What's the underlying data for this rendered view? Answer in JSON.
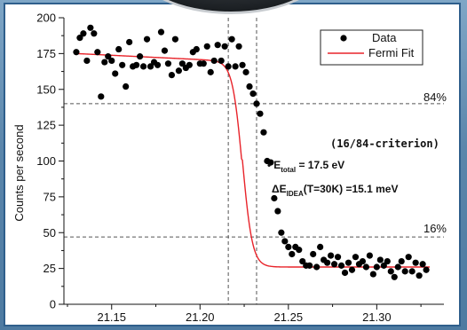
{
  "chart_data": {
    "type": "scatter",
    "xlabel": "",
    "ylabel": "Counts per second",
    "xlim": [
      21.123,
      21.338
    ],
    "ylim": [
      0,
      200
    ],
    "xticks": [
      "21.15",
      "21.20",
      "21.25",
      "21.30"
    ],
    "yticks": [
      "0",
      "25",
      "50",
      "75",
      "100",
      "125",
      "150",
      "175",
      "200"
    ],
    "legend": {
      "position": "top-right",
      "entries": [
        "Data",
        "Fermi Fit"
      ]
    },
    "colors": {
      "data": "#000000",
      "fit": "#e8232a",
      "guides": "#555555"
    },
    "series": [
      {
        "name": "Data",
        "style": "markers",
        "x": [
          21.13,
          21.132,
          21.134,
          21.136,
          21.138,
          21.14,
          21.142,
          21.144,
          21.146,
          21.148,
          21.15,
          21.152,
          21.154,
          21.156,
          21.158,
          21.16,
          21.162,
          21.164,
          21.166,
          21.168,
          21.17,
          21.172,
          21.174,
          21.176,
          21.178,
          21.18,
          21.182,
          21.184,
          21.186,
          21.188,
          21.19,
          21.192,
          21.194,
          21.196,
          21.198,
          21.2,
          21.202,
          21.204,
          21.206,
          21.208,
          21.21,
          21.212,
          21.214,
          21.216,
          21.218,
          21.22,
          21.222,
          21.224,
          21.226,
          21.228,
          21.23,
          21.232,
          21.234,
          21.236,
          21.238,
          21.24,
          21.242,
          21.244,
          21.246,
          21.248,
          21.25,
          21.252,
          21.254,
          21.256,
          21.258,
          21.26,
          21.262,
          21.264,
          21.266,
          21.268,
          21.27,
          21.272,
          21.274,
          21.276,
          21.278,
          21.28,
          21.282,
          21.284,
          21.286,
          21.288,
          21.29,
          21.292,
          21.294,
          21.296,
          21.298,
          21.3,
          21.302,
          21.304,
          21.306,
          21.308,
          21.31,
          21.312,
          21.314,
          21.316,
          21.318,
          21.32,
          21.322,
          21.324,
          21.326,
          21.328
        ],
        "y": [
          176,
          186,
          189,
          170,
          193,
          189,
          176,
          145,
          169,
          173,
          170,
          161,
          178,
          167,
          152,
          183,
          166,
          167,
          173,
          166,
          185,
          166,
          169,
          167,
          190,
          177,
          168,
          160,
          185,
          163,
          168,
          165,
          167,
          176,
          178,
          168,
          168,
          180,
          162,
          170,
          181,
          170,
          180,
          166,
          185,
          166,
          180,
          167,
          162,
          152,
          147,
          140,
          133,
          120,
          100,
          99,
          74,
          65,
          50,
          44,
          40,
          35,
          40,
          38,
          30,
          27,
          27,
          35,
          26,
          40,
          31,
          29,
          34,
          28,
          33,
          27,
          22,
          29,
          24,
          33,
          28,
          30,
          26,
          34,
          21,
          26,
          31,
          27,
          30,
          23,
          19,
          26,
          30,
          23,
          33,
          23,
          29,
          20,
          28,
          24
        ]
      },
      {
        "name": "Fermi Fit",
        "style": "line",
        "params": {
          "low": 26,
          "high": 175,
          "slope": -0.0005,
          "mu": 21.224,
          "width": 0.0028
        },
        "x_range": [
          21.13,
          21.33
        ]
      }
    ],
    "guides": {
      "vertical": [
        21.216,
        21.232
      ],
      "horizontal": [
        {
          "y": 140,
          "label": "84%"
        },
        {
          "y": 47,
          "label": "16%"
        }
      ]
    },
    "annotations": {
      "criterion": "(16/84-criterion)",
      "bullet": "•",
      "etotal_main": "E",
      "etotal_sub": "total",
      "etotal_value": " = 17.5 eV",
      "delta_main": "ΔE",
      "delta_sub": "IDEA",
      "delta_value": "(T=30K) =15.1 meV"
    }
  }
}
